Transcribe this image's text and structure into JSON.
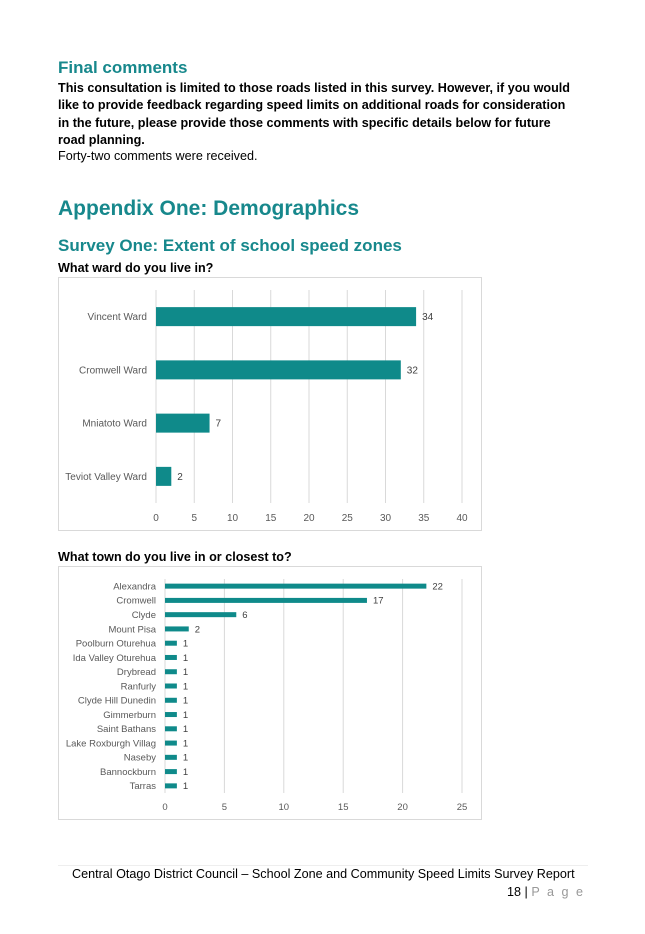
{
  "final": {
    "heading": "Final comments",
    "bold_text": "This consultation is limited to those roads listed in this survey.  However, if you would like to provide feedback regarding speed limits on additional roads for consideration in the future, please provide those comments with specific details below for future road planning.",
    "count_text": "Forty-two comments were received."
  },
  "appendix": {
    "heading": "Appendix One: Demographics",
    "survey_heading": "Survey One: Extent of school speed zones"
  },
  "questions": {
    "q1": "What ward do you live in?",
    "q2": "What town do you live in or closest to?"
  },
  "colors": {
    "bar": "#0f8a8a",
    "heading": "#17888c",
    "grid": "#d9d9d9"
  },
  "chart_data": [
    {
      "type": "bar",
      "orientation": "horizontal",
      "categories": [
        "Vincent Ward",
        "Cromwell Ward",
        "Mniatoto Ward",
        "Teviot Valley Ward"
      ],
      "values": [
        34,
        32,
        7,
        2
      ],
      "xlim": [
        0,
        40
      ],
      "xticks": [
        0,
        5,
        10,
        15,
        20,
        25,
        30,
        35,
        40
      ],
      "grid": true
    },
    {
      "type": "bar",
      "orientation": "horizontal",
      "categories": [
        "Alexandra",
        "Cromwell",
        "Clyde",
        "Mount Pisa",
        "Poolburn Oturehua",
        "Ida Valley Oturehua",
        "Drybread",
        "Ranfurly",
        "Clyde Hill Dunedin",
        "Gimmerburn",
        "Saint Bathans",
        "Lake Roxburgh Villag",
        "Naseby",
        "Bannockburn",
        "Tarras"
      ],
      "values": [
        22,
        17,
        6,
        2,
        1,
        1,
        1,
        1,
        1,
        1,
        1,
        1,
        1,
        1,
        1
      ],
      "xlim": [
        0,
        25
      ],
      "xticks": [
        0,
        5,
        10,
        15,
        20,
        25
      ],
      "grid": true
    }
  ],
  "footer": {
    "text": "Central Otago District Council – School Zone and Community Speed Limits Survey Report",
    "page_number": "18",
    "separator": " | ",
    "page_word": "P a g e"
  }
}
